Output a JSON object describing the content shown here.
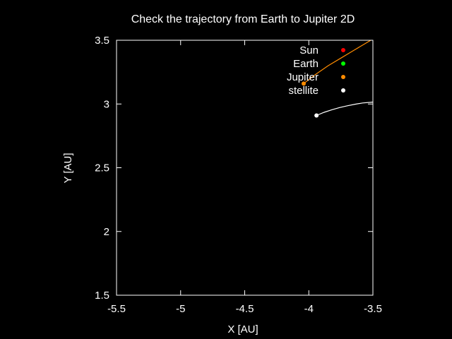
{
  "chart_data": {
    "type": "line",
    "title": "Check the trajectory from Earth to Jupiter 2D",
    "xlabel": "X [AU]",
    "ylabel": "Y [AU]",
    "xlim": [
      -5.5,
      -3.5
    ],
    "ylim": [
      1.5,
      3.5
    ],
    "xticks": [
      -5.5,
      -5,
      -4.5,
      -4,
      -3.5
    ],
    "xtick_labels": [
      "-5.5",
      "-5",
      "-4.5",
      "-4",
      "-3.5"
    ],
    "yticks": [
      1.5,
      2,
      2.5,
      3,
      3.5
    ],
    "ytick_labels": [
      "1.5",
      "2",
      "2.5",
      "3",
      "3.5"
    ],
    "grid": false,
    "legend_position": "top-right",
    "series": [
      {
        "name": "Sun",
        "color": "#ff0000",
        "x": [],
        "y": []
      },
      {
        "name": "Earth",
        "color": "#00ff00",
        "x": [],
        "y": []
      },
      {
        "name": "Jupiter",
        "color": "#ff8c00",
        "x": [
          -4.04,
          -3.95,
          -3.85,
          -3.75,
          -3.65,
          -3.55,
          -3.5
        ],
        "y": [
          3.16,
          3.23,
          3.3,
          3.36,
          3.42,
          3.48,
          3.51
        ],
        "marker": {
          "x": -4.04,
          "y": 3.16
        }
      },
      {
        "name": "stellite",
        "color": "#ffffff",
        "x": [
          -3.94,
          -3.88,
          -3.82,
          -3.76,
          -3.7,
          -3.64,
          -3.58,
          -3.52,
          -3.5
        ],
        "y": [
          2.91,
          2.935,
          2.955,
          2.972,
          2.986,
          2.998,
          3.008,
          3.013,
          3.015
        ],
        "marker": {
          "x": -3.94,
          "y": 2.91
        }
      }
    ]
  }
}
